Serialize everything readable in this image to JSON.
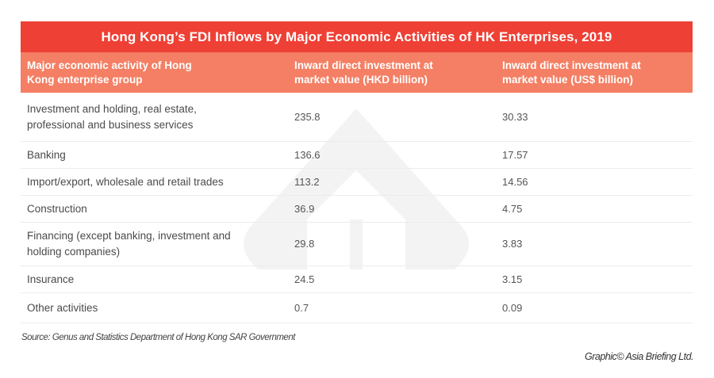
{
  "title": "Hong Kong’s FDI Inflows by Major Economic Activities of HK Enterprises, 2019",
  "colors": {
    "title_bg": "#ee4035",
    "header_bg": "#f47f64",
    "text": "#4a4a4a"
  },
  "columns": [
    "Major economic activity of Hong Kong enterprise group",
    "Inward direct investment at market value (HKD billion)",
    "Inward direct investment at market value (US$ billion)"
  ],
  "rows": [
    {
      "activity": "Investment and holding, real estate, professional and business services",
      "hkd": "235.8",
      "usd": "30.33"
    },
    {
      "activity": "Banking",
      "hkd": "136.6",
      "usd": "17.57"
    },
    {
      "activity": "Import/export, wholesale and retail trades",
      "hkd": "113.2",
      "usd": "14.56"
    },
    {
      "activity": "Construction",
      "hkd": "36.9",
      "usd": "4.75"
    },
    {
      "activity": "Financing (except banking, investment and holding companies)",
      "hkd": "29.8",
      "usd": "3.83"
    },
    {
      "activity": "Insurance",
      "hkd": "24.5",
      "usd": "3.15"
    },
    {
      "activity": "Other activities",
      "hkd": "0.7",
      "usd": "0.09"
    }
  ],
  "source": "Source: Genus and Statistics Department of Hong Kong SAR Government",
  "credit": "Graphic© Asia Briefing Ltd.",
  "watermark_icon": "asia-briefing-logo"
}
